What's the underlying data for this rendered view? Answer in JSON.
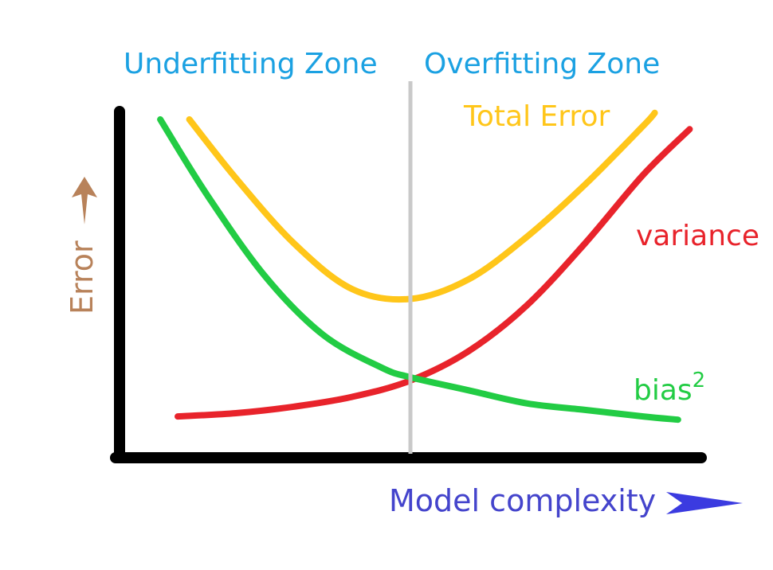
{
  "chart_data": {
    "type": "line",
    "title": "",
    "xlabel": "Model complexity",
    "ylabel": "Error",
    "xlim": [
      0,
      10
    ],
    "ylim": [
      0,
      10
    ],
    "zones": {
      "left": "Underfitting Zone",
      "right": "Overfitting Zone",
      "boundary_x": 5
    },
    "series": [
      {
        "name": "Total Error",
        "label": "Total Error",
        "color": "#FFC61A",
        "x": [
          1.2,
          2.0,
          3.0,
          4.0,
          5.0,
          6.0,
          7.0,
          8.0,
          9.0,
          9.2
        ],
        "y": [
          10.0,
          8.2,
          6.2,
          4.8,
          4.5,
          5.1,
          6.4,
          8.0,
          9.8,
          10.2
        ]
      },
      {
        "name": "variance",
        "label": "variance",
        "color": "#E8232B",
        "x": [
          1.0,
          2.0,
          3.0,
          4.0,
          5.0,
          6.0,
          7.0,
          8.0,
          9.0,
          9.8
        ],
        "y": [
          0.9,
          1.0,
          1.2,
          1.5,
          2.0,
          2.9,
          4.3,
          6.2,
          8.3,
          9.7
        ]
      },
      {
        "name": "bias",
        "label": "bias",
        "label_superscript": "2",
        "color": "#22CC44",
        "x": [
          0.7,
          1.5,
          2.5,
          3.5,
          4.5,
          5.0,
          6.0,
          7.0,
          8.0,
          9.0,
          9.6
        ],
        "y": [
          10.0,
          7.7,
          5.2,
          3.4,
          2.4,
          2.1,
          1.7,
          1.3,
          1.1,
          0.9,
          0.8
        ]
      }
    ],
    "colors": {
      "axes": "#000000",
      "divider": "#C9C9C9",
      "zone_labels": "#1BA1E2",
      "xlabel": "#4444CC",
      "ylabel": "#B8825A"
    },
    "grid": false,
    "legend": "none"
  }
}
